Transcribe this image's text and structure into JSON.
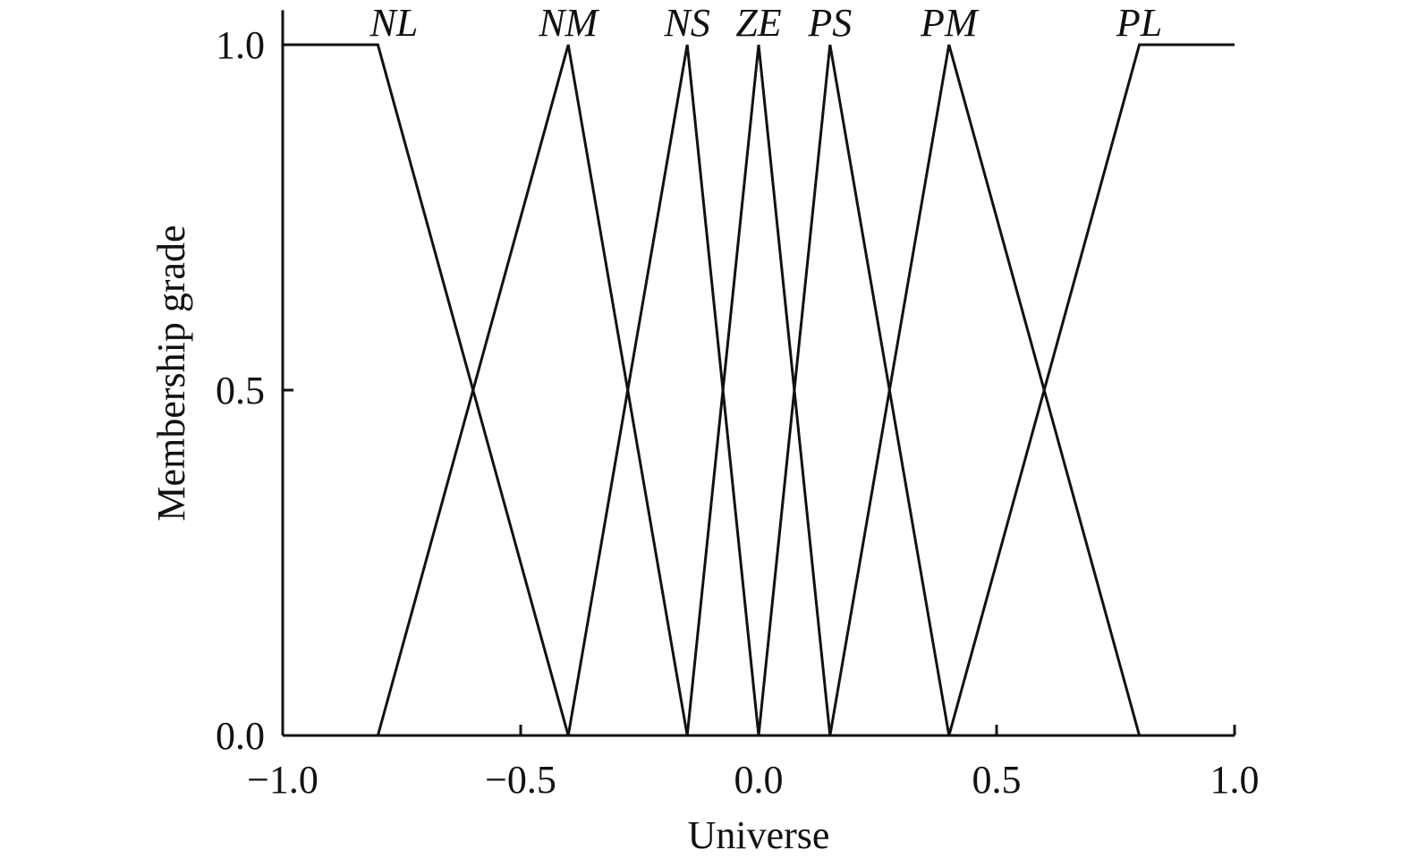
{
  "chart_data": {
    "type": "line",
    "xlabel": "Universe",
    "ylabel": "Membership grade",
    "xlim": [
      -1,
      1
    ],
    "ylim": [
      0,
      1.05
    ],
    "xticks": [
      {
        "value": -1,
        "label": "−1.0"
      },
      {
        "value": -0.5,
        "label": "−0.5"
      },
      {
        "value": 0,
        "label": "0.0"
      },
      {
        "value": 0.5,
        "label": "0.5"
      },
      {
        "value": 1,
        "label": "1.0"
      }
    ],
    "yticks": [
      {
        "value": 0,
        "label": "0.0"
      },
      0.5,
      {
        "value": 1,
        "label": "1.0"
      }
    ],
    "color": "#111111",
    "series": [
      {
        "name": "NL",
        "x": [
          -1,
          -0.8,
          -0.4,
          1
        ],
        "values": [
          1,
          1,
          0,
          0
        ]
      },
      {
        "name": "NM",
        "x": [
          -1,
          -0.8,
          -0.4,
          -0.15,
          1
        ],
        "values": [
          0,
          0,
          1,
          0,
          0
        ]
      },
      {
        "name": "NS",
        "x": [
          -1,
          -0.4,
          -0.15,
          0,
          1
        ],
        "values": [
          0,
          0,
          1,
          0,
          0
        ]
      },
      {
        "name": "ZE",
        "x": [
          -1,
          -0.15,
          0,
          0.15,
          1
        ],
        "values": [
          0,
          0,
          1,
          0,
          0
        ]
      },
      {
        "name": "PS",
        "x": [
          -1,
          0,
          0.15,
          0.4,
          1
        ],
        "values": [
          0,
          0,
          1,
          0,
          0
        ]
      },
      {
        "name": "PM",
        "x": [
          -1,
          0.15,
          0.4,
          0.8,
          1
        ],
        "values": [
          0,
          0,
          1,
          0,
          0
        ]
      },
      {
        "name": "PL",
        "x": [
          -1,
          0.4,
          0.8,
          1
        ],
        "values": [
          0,
          0,
          1,
          1
        ]
      }
    ]
  }
}
